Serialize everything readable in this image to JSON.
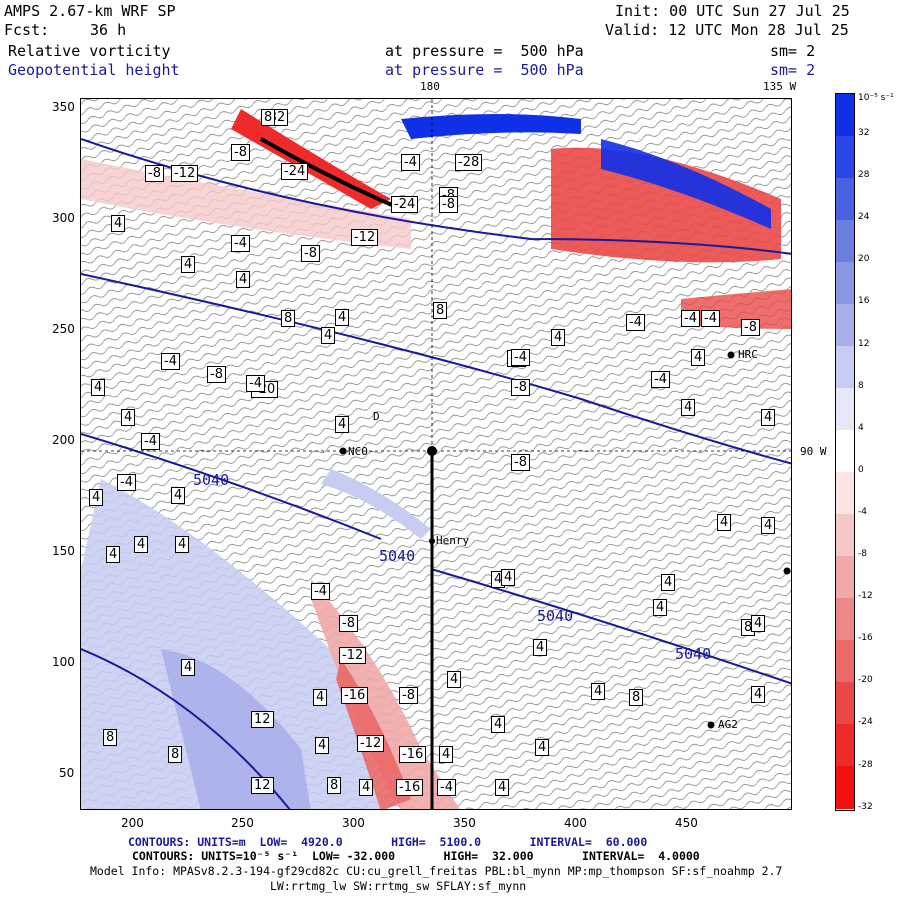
{
  "header": {
    "model": "AMPS 2.67-km WRF SP",
    "fcst_label": "Fcst:",
    "fcst_value": "36 h",
    "init": "Init: 00 UTC Sun 27 Jul 25",
    "valid": "Valid: 12 UTC Mon 28 Jul 25",
    "field1": {
      "name": "Relative vorticity",
      "level": "at pressure =  500 hPa",
      "smooth": "sm= 2"
    },
    "field2": {
      "name": "Geopotential height",
      "level": "at pressure =  500 hPa",
      "smooth": "sm= 2"
    }
  },
  "map": {
    "lon_labels": {
      "top_180": "180",
      "top_135w": "135 W",
      "right_90w": "90 W"
    },
    "x_ticks": [
      "200",
      "250",
      "300",
      "350",
      "400",
      "450"
    ],
    "y_ticks": [
      "350",
      "300",
      "250",
      "200",
      "150",
      "100",
      "50"
    ],
    "stations": [
      "NCO",
      "Henry",
      "HRC",
      "AG2",
      "D"
    ],
    "height_contour_labels": [
      "5040",
      "5040",
      "5040",
      "5040"
    ],
    "vort_labels": [
      "-32",
      "-8",
      "-8",
      "-12",
      "-24",
      "-4",
      "-28",
      "-8",
      "-24",
      "-8",
      "-12",
      "4",
      "-4",
      "-8",
      "4",
      "4",
      "8",
      "4",
      "8",
      "4",
      "-4",
      "-4",
      "-8",
      "-20",
      "-4",
      "-4",
      "-4",
      "-8",
      "4",
      "-4",
      "-8",
      "4",
      "4",
      "4",
      "-4",
      "-4",
      "4",
      "4",
      "4",
      "4",
      "4",
      "4",
      "4",
      "4",
      "4",
      "8",
      "4",
      "4",
      "4",
      "8",
      "4",
      "4",
      "4",
      "4",
      "4",
      "-4",
      "-8",
      "-12",
      "-16",
      "-8",
      "-12",
      "-16",
      "-16",
      "-4",
      "4",
      "4",
      "4",
      "4",
      "4",
      "4",
      "4",
      "12",
      "8",
      "8",
      "12",
      "8",
      "4",
      "4",
      "4",
      "-4",
      "-8",
      "-4",
      "4",
      "8"
    ]
  },
  "colorbar": {
    "unit": "10⁻⁵ s⁻¹",
    "labels": [
      "32",
      "28",
      "24",
      "20",
      "16",
      "12",
      "8",
      "4",
      "0",
      "-4",
      "-8",
      "-12",
      "-16",
      "-20",
      "-24",
      "-28",
      "-32"
    ],
    "colors": [
      "#1030e8",
      "#2b48e6",
      "#4a62e2",
      "#6a7ee0",
      "#8896e4",
      "#a8b0ea",
      "#c8ccf2",
      "#e6e8fa",
      "#ffffff",
      "#fbe6e6",
      "#f5c8c8",
      "#f0a8a8",
      "#ec8888",
      "#ea6868",
      "#ea4848",
      "#ee2a2a",
      "#f51010"
    ]
  },
  "footer": {
    "line1": "CONTOURS: UNITS=m  LOW=  4920.0       HIGH=  5100.0       INTERVAL=  60.000",
    "line2": "CONTOURS: UNITS=10⁻⁵ s⁻¹  LOW= -32.000       HIGH=  32.000       INTERVAL=  4.0000",
    "line3": "Model Info: MPASv8.2.3-194-gf29cd82c CU:cu_grell_freitas PBL:bl_mynn MP:mp_thompson SF:sf_noahmp 2.7",
    "line4": "LW:rrtmg_lw SW:rrtmg_sw SFLAY:sf_mynn"
  }
}
